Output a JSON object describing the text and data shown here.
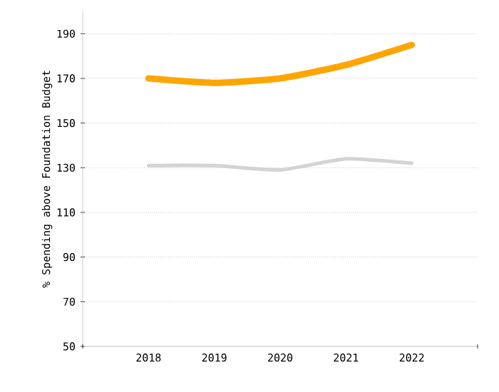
{
  "chart_data": {
    "type": "line",
    "ylabel": "% Spending above Foundation Budget",
    "categories": [
      "2018",
      "2019",
      "2020",
      "2021",
      "2022"
    ],
    "series": [
      {
        "color": "#ffa500",
        "values": [
          170,
          168,
          170,
          176,
          185
        ]
      },
      {
        "color": "#d3d3d3",
        "values": [
          131,
          131,
          129,
          134,
          132
        ]
      }
    ],
    "ylim": [
      50,
      200
    ],
    "yticks": [
      50,
      70,
      90,
      110,
      130,
      150,
      170,
      190
    ],
    "grid": "y",
    "marker": "none",
    "line_style": "solid"
  }
}
